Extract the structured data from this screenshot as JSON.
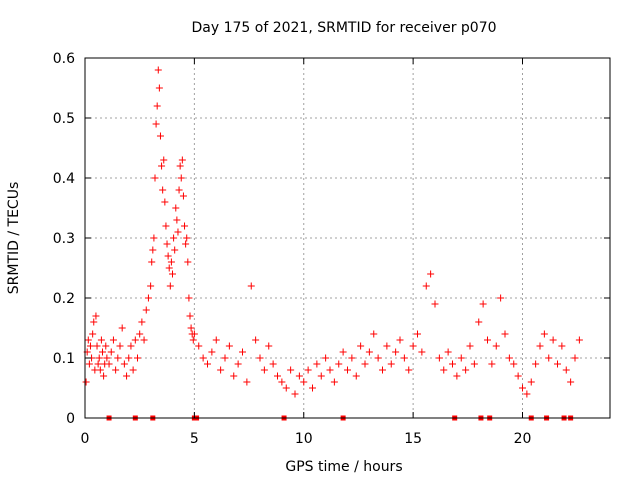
{
  "chart_data": {
    "type": "scatter",
    "title": "Day 175 of 2021, SRMTID for receiver p070",
    "xlabel": "GPS time / hours",
    "ylabel": "SRMTID / TECUs",
    "xlim": [
      0,
      24
    ],
    "ylim": [
      0,
      0.6
    ],
    "x_ticks": [
      0,
      5,
      10,
      15,
      20
    ],
    "x_tick_labels": [
      "0",
      "5",
      "10",
      "15",
      "20"
    ],
    "y_ticks": [
      0,
      0.1,
      0.2,
      0.3,
      0.4,
      0.5,
      0.6
    ],
    "y_tick_labels": [
      "0",
      "0.1",
      "0.2",
      "0.3",
      "0.4",
      "0.5",
      "0.6"
    ],
    "grid": true,
    "marker": "plus",
    "color": "#ff0000",
    "series": [
      {
        "name": "SRMTID",
        "points": [
          [
            0.05,
            0.06
          ],
          [
            0.1,
            0.11
          ],
          [
            0.15,
            0.13
          ],
          [
            0.2,
            0.09
          ],
          [
            0.25,
            0.12
          ],
          [
            0.3,
            0.1
          ],
          [
            0.35,
            0.14
          ],
          [
            0.4,
            0.16
          ],
          [
            0.45,
            0.08
          ],
          [
            0.5,
            0.17
          ],
          [
            0.55,
            0.12
          ],
          [
            0.6,
            0.09
          ],
          [
            0.65,
            0.1
          ],
          [
            0.7,
            0.08
          ],
          [
            0.75,
            0.13
          ],
          [
            0.8,
            0.11
          ],
          [
            0.85,
            0.07
          ],
          [
            0.9,
            0.09
          ],
          [
            0.95,
            0.12
          ],
          [
            1.0,
            0.1
          ],
          [
            1.1,
            0.09
          ],
          [
            1.2,
            0.11
          ],
          [
            1.3,
            0.13
          ],
          [
            1.4,
            0.08
          ],
          [
            1.5,
            0.1
          ],
          [
            1.6,
            0.12
          ],
          [
            1.7,
            0.15
          ],
          [
            1.8,
            0.09
          ],
          [
            1.9,
            0.07
          ],
          [
            2.0,
            0.1
          ],
          [
            2.1,
            0.12
          ],
          [
            2.2,
            0.08
          ],
          [
            2.3,
            0.13
          ],
          [
            2.4,
            0.1
          ],
          [
            2.5,
            0.14
          ],
          [
            2.6,
            0.16
          ],
          [
            2.7,
            0.13
          ],
          [
            2.8,
            0.18
          ],
          [
            2.9,
            0.2
          ],
          [
            3.0,
            0.22
          ],
          [
            3.05,
            0.26
          ],
          [
            3.1,
            0.28
          ],
          [
            3.15,
            0.3
          ],
          [
            3.2,
            0.4
          ],
          [
            3.25,
            0.49
          ],
          [
            3.3,
            0.52
          ],
          [
            3.35,
            0.58
          ],
          [
            3.4,
            0.55
          ],
          [
            3.45,
            0.47
          ],
          [
            3.5,
            0.42
          ],
          [
            3.55,
            0.38
          ],
          [
            3.6,
            0.43
          ],
          [
            3.65,
            0.36
          ],
          [
            3.7,
            0.32
          ],
          [
            3.75,
            0.29
          ],
          [
            3.8,
            0.27
          ],
          [
            3.85,
            0.25
          ],
          [
            3.9,
            0.22
          ],
          [
            3.95,
            0.26
          ],
          [
            4.0,
            0.24
          ],
          [
            4.05,
            0.3
          ],
          [
            4.1,
            0.28
          ],
          [
            4.15,
            0.35
          ],
          [
            4.2,
            0.33
          ],
          [
            4.25,
            0.31
          ],
          [
            4.3,
            0.38
          ],
          [
            4.35,
            0.42
          ],
          [
            4.4,
            0.4
          ],
          [
            4.45,
            0.43
          ],
          [
            4.5,
            0.37
          ],
          [
            4.55,
            0.32
          ],
          [
            4.6,
            0.29
          ],
          [
            4.65,
            0.3
          ],
          [
            4.7,
            0.26
          ],
          [
            4.75,
            0.2
          ],
          [
            4.8,
            0.17
          ],
          [
            4.85,
            0.15
          ],
          [
            4.9,
            0.14
          ],
          [
            4.95,
            0.13
          ],
          [
            5.0,
            0.14
          ],
          [
            5.2,
            0.12
          ],
          [
            5.4,
            0.1
          ],
          [
            5.6,
            0.09
          ],
          [
            5.8,
            0.11
          ],
          [
            6.0,
            0.13
          ],
          [
            6.2,
            0.08
          ],
          [
            6.4,
            0.1
          ],
          [
            6.6,
            0.12
          ],
          [
            6.8,
            0.07
          ],
          [
            7.0,
            0.09
          ],
          [
            7.2,
            0.11
          ],
          [
            7.4,
            0.06
          ],
          [
            7.6,
            0.22
          ],
          [
            7.8,
            0.13
          ],
          [
            8.0,
            0.1
          ],
          [
            8.2,
            0.08
          ],
          [
            8.4,
            0.12
          ],
          [
            8.6,
            0.09
          ],
          [
            8.8,
            0.07
          ],
          [
            9.0,
            0.06
          ],
          [
            9.2,
            0.05
          ],
          [
            9.4,
            0.08
          ],
          [
            9.6,
            0.04
          ],
          [
            9.8,
            0.07
          ],
          [
            10.0,
            0.06
          ],
          [
            10.2,
            0.08
          ],
          [
            10.4,
            0.05
          ],
          [
            10.6,
            0.09
          ],
          [
            10.8,
            0.07
          ],
          [
            11.0,
            0.1
          ],
          [
            11.2,
            0.08
          ],
          [
            11.4,
            0.06
          ],
          [
            11.6,
            0.09
          ],
          [
            11.8,
            0.11
          ],
          [
            12.0,
            0.08
          ],
          [
            12.2,
            0.1
          ],
          [
            12.4,
            0.07
          ],
          [
            12.6,
            0.12
          ],
          [
            12.8,
            0.09
          ],
          [
            13.0,
            0.11
          ],
          [
            13.2,
            0.14
          ],
          [
            13.4,
            0.1
          ],
          [
            13.6,
            0.08
          ],
          [
            13.8,
            0.12
          ],
          [
            14.0,
            0.09
          ],
          [
            14.2,
            0.11
          ],
          [
            14.4,
            0.13
          ],
          [
            14.6,
            0.1
          ],
          [
            14.8,
            0.08
          ],
          [
            15.0,
            0.12
          ],
          [
            15.2,
            0.14
          ],
          [
            15.4,
            0.11
          ],
          [
            15.6,
            0.22
          ],
          [
            15.8,
            0.24
          ],
          [
            16.0,
            0.19
          ],
          [
            16.2,
            0.1
          ],
          [
            16.4,
            0.08
          ],
          [
            16.6,
            0.11
          ],
          [
            16.8,
            0.09
          ],
          [
            17.0,
            0.07
          ],
          [
            17.2,
            0.1
          ],
          [
            17.4,
            0.08
          ],
          [
            17.6,
            0.12
          ],
          [
            17.8,
            0.09
          ],
          [
            18.0,
            0.16
          ],
          [
            18.2,
            0.19
          ],
          [
            18.4,
            0.13
          ],
          [
            18.6,
            0.09
          ],
          [
            18.8,
            0.12
          ],
          [
            19.0,
            0.2
          ],
          [
            19.2,
            0.14
          ],
          [
            19.4,
            0.1
          ],
          [
            19.6,
            0.09
          ],
          [
            19.8,
            0.07
          ],
          [
            20.0,
            0.05
          ],
          [
            20.2,
            0.04
          ],
          [
            20.4,
            0.06
          ],
          [
            20.6,
            0.09
          ],
          [
            20.8,
            0.12
          ],
          [
            21.0,
            0.14
          ],
          [
            21.2,
            0.1
          ],
          [
            21.4,
            0.13
          ],
          [
            21.6,
            0.09
          ],
          [
            21.8,
            0.12
          ],
          [
            22.0,
            0.08
          ],
          [
            22.2,
            0.06
          ],
          [
            22.4,
            0.1
          ],
          [
            22.6,
            0.13
          ]
        ]
      },
      {
        "name": "zero-value markers",
        "marker": "square",
        "points": [
          [
            1.1,
            0
          ],
          [
            2.3,
            0
          ],
          [
            3.1,
            0
          ],
          [
            5.0,
            0
          ],
          [
            5.1,
            0
          ],
          [
            9.1,
            0
          ],
          [
            11.8,
            0
          ],
          [
            16.9,
            0
          ],
          [
            18.1,
            0
          ],
          [
            18.5,
            0
          ],
          [
            20.4,
            0
          ],
          [
            21.1,
            0
          ],
          [
            21.9,
            0
          ],
          [
            22.2,
            0
          ]
        ]
      }
    ]
  }
}
